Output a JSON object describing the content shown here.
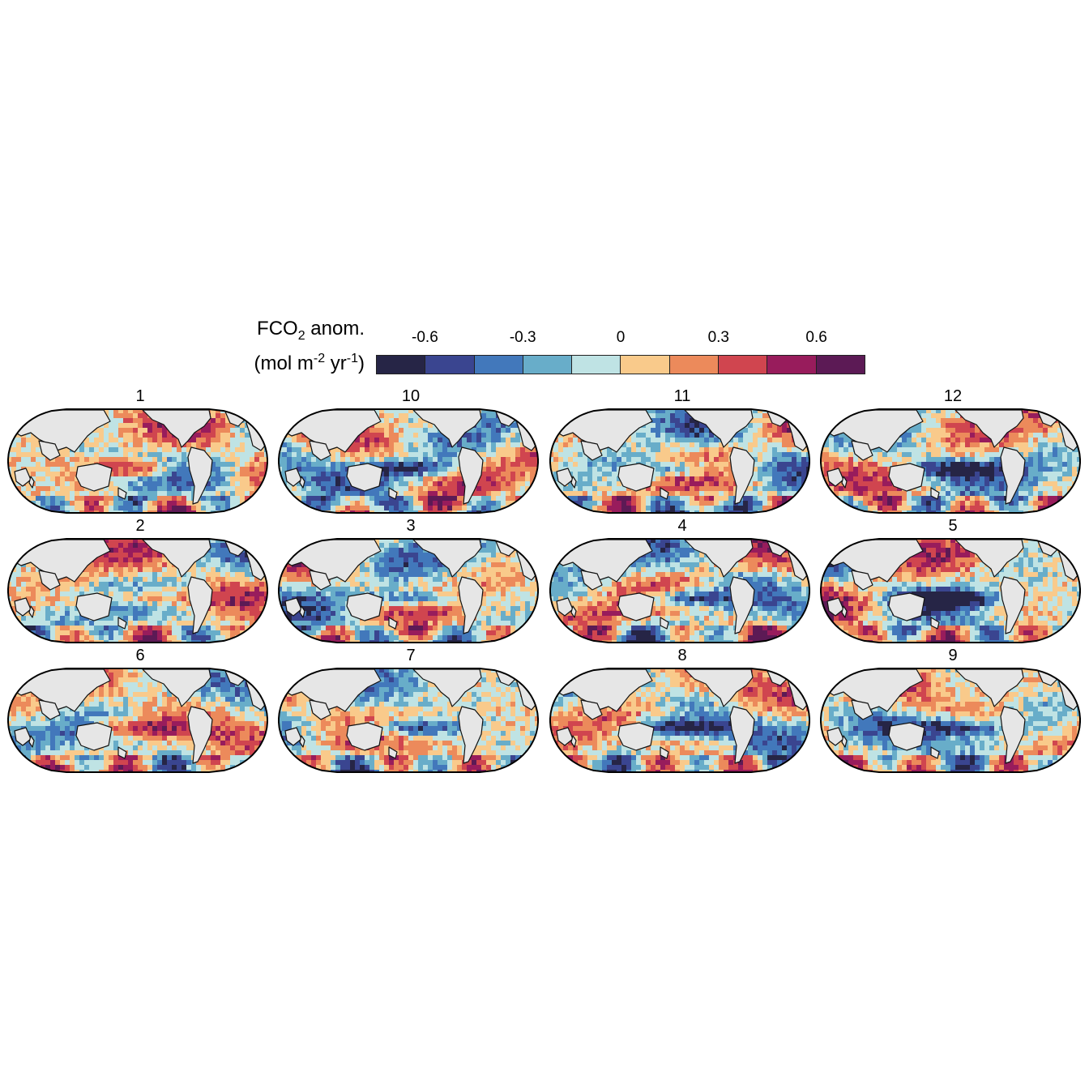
{
  "legend": {
    "title_main": "FCO",
    "title_sub": "2",
    "title_rest": " anom.",
    "unit_open": "(mol m",
    "unit_exp1": "-2",
    "unit_mid": " yr",
    "unit_exp2": "-1",
    "unit_close": ")",
    "ticks": [
      "-0.6",
      "-0.3",
      "0",
      "0.3",
      "0.6"
    ],
    "colors": [
      "#262546",
      "#3a4590",
      "#4278bb",
      "#68adc9",
      "#bfe3e4",
      "#f9ca8b",
      "#ec8a5b",
      "#d0454f",
      "#981c5c",
      "#5c1a55"
    ]
  },
  "panels": [
    {
      "label": "1"
    },
    {
      "label": "10"
    },
    {
      "label": "11"
    },
    {
      "label": "12"
    },
    {
      "label": "2"
    },
    {
      "label": "3"
    },
    {
      "label": "4"
    },
    {
      "label": "5"
    },
    {
      "label": "6"
    },
    {
      "label": "7"
    },
    {
      "label": "8"
    },
    {
      "label": "9"
    }
  ],
  "map_style": {
    "land_color": "#e6e6e6",
    "coast_color": "#111111",
    "outline_color": "#000000"
  }
}
